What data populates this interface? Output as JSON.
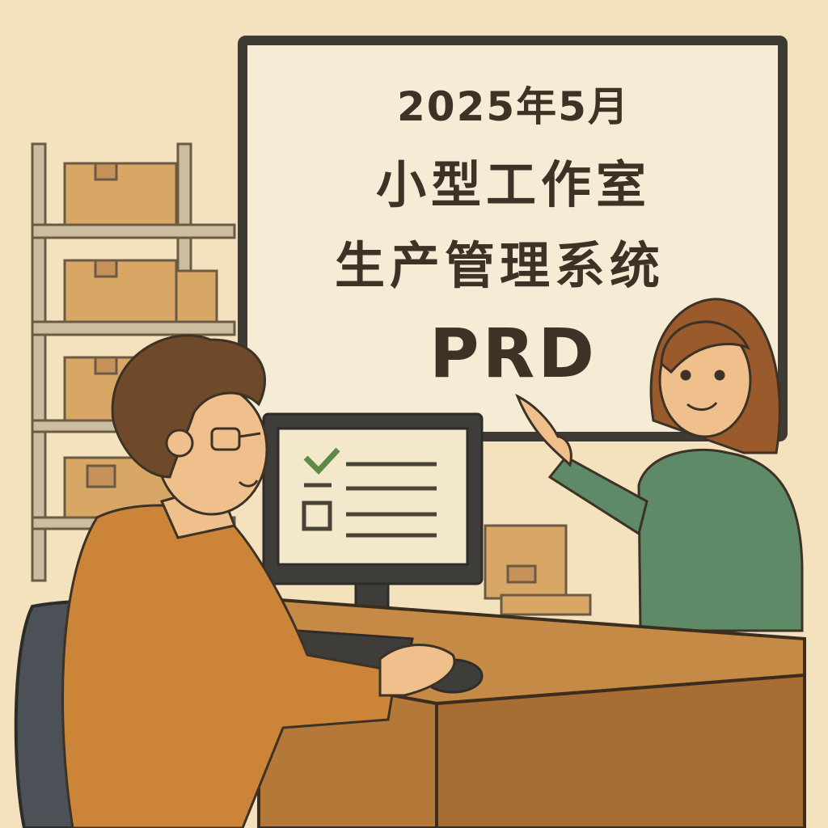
{
  "board": {
    "line1": "2025年5月",
    "line2": "小型工作室",
    "line3": "生产管理系统",
    "line4": "PRD"
  },
  "colors": {
    "background": "#f3e2bd",
    "board": "#f6ecd6",
    "board_frame": "#3e3a34",
    "text": "#3c3226",
    "box": "#d8a766",
    "shelf": "#cbbd9f",
    "desk": "#b47838",
    "man_shirt": "#cc8538",
    "woman_sweater": "#5f8a67",
    "chair": "#4b5156",
    "check": "#5f8a46"
  },
  "icons": [
    "checkbox-checked-icon",
    "checkbox-empty-icon"
  ]
}
